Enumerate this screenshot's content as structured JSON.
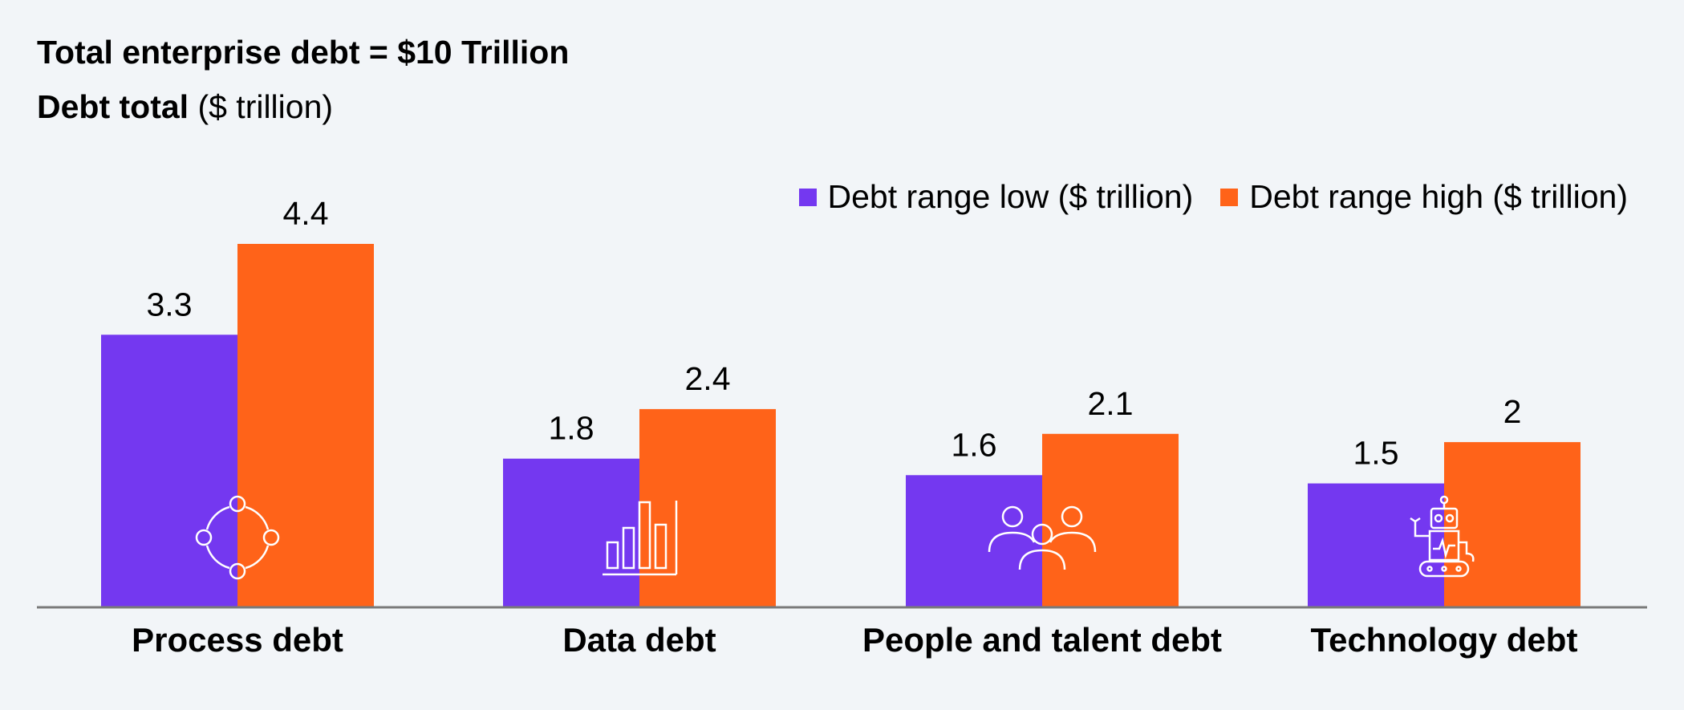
{
  "header": {
    "title": "Total enterprise debt = $10 Trillion",
    "subtitle_bold": "Debt total",
    "subtitle_unit": "($ trillion)"
  },
  "colors": {
    "low": "#7438f0",
    "high": "#ff6319",
    "axis": "#7a7a7a",
    "icon": "#ffffff"
  },
  "chart_data": {
    "type": "bar",
    "categories": [
      "Process debt",
      "Data debt",
      "People and talent debt",
      "Technology debt"
    ],
    "category_icons": [
      "process-cycle-icon",
      "bar-chart-icon",
      "people-group-icon",
      "robot-icon"
    ],
    "series": [
      {
        "name": "Debt range low ($ trillion)",
        "values": [
          3.3,
          1.8,
          1.6,
          1.5
        ],
        "labels": [
          "3.3",
          "1.8",
          "1.6",
          "1.5"
        ]
      },
      {
        "name": "Debt range high ($ trillion)",
        "values": [
          4.4,
          2.4,
          2.1,
          2
        ],
        "labels": [
          "4.4",
          "2.4",
          "2.1",
          "2"
        ]
      }
    ],
    "title": "Total enterprise debt = $10 Trillion",
    "ylabel": "Debt total ($ trillion)",
    "ylim": [
      0,
      4.4
    ],
    "legend": "top-right",
    "grid": false
  }
}
